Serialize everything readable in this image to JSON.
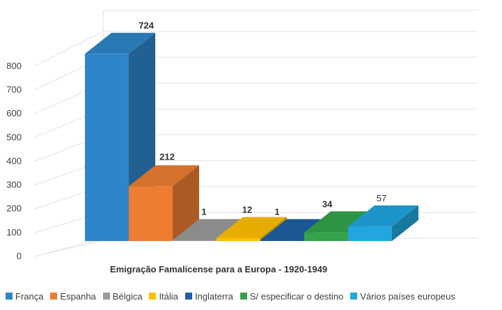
{
  "colors": {
    "franca": "#2E86C8",
    "espanha": "#ED7D31",
    "belgica": "#9A9A9A",
    "italia": "#FFC000",
    "inglaterra": "#1F5FA5",
    "sem_destino": "#34A34C",
    "varios": "#21A6E0"
  },
  "chart_data": {
    "type": "bar",
    "three_d": true,
    "title": "",
    "xlabel": "Emigração Famalicense para a Europa - 1920-1949",
    "ylabel": "",
    "ylim": [
      0,
      800
    ],
    "yticks": [
      "0",
      "100",
      "200",
      "300",
      "400",
      "500",
      "600",
      "700",
      "800"
    ],
    "grid": true,
    "legend_position": "bottom",
    "categories": [
      "França",
      "Espanha",
      "Bélgica",
      "Itália",
      "Inglaterra",
      "S/ especificar o destino",
      "Vários países europeus"
    ],
    "values": [
      724,
      212,
      1,
      12,
      1,
      34,
      57
    ],
    "data_labels": [
      "724",
      "212",
      "1",
      "12",
      "1",
      "34",
      "57"
    ],
    "series_colors": [
      "#2E86C8",
      "#ED7D31",
      "#9A9A9A",
      "#FFC000",
      "#1F5FA5",
      "#34A34C",
      "#21A6E0"
    ]
  }
}
